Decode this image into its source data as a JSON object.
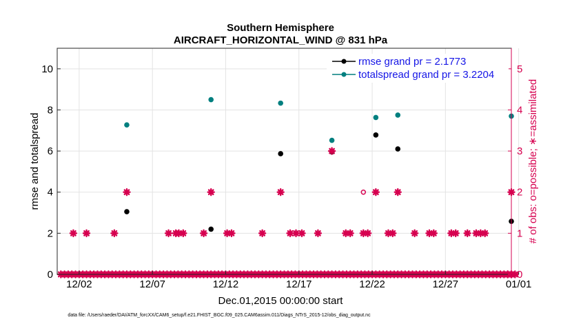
{
  "chart_data": {
    "type": "scatter",
    "title": "Southern Hemisphere",
    "subtitle": "AIRCRAFT_HORIZONTAL_WIND @ 831 hPa",
    "xlabel": "Dec.01,2015 00:00:00 start",
    "ylabel": "rmse and totalspread",
    "y2label": "# of obs: o=possible; ∗=assimilated",
    "footnote": "data file: /Users/raeder/DAI/ATM_forcXX/CAM6_setup/f.e21.FHIST_BGC.f09_025.CAM6assim.011/Diags_NTrS_2015-12/obs_diag_output.nc",
    "xlim": [
      0.5,
      31.5
    ],
    "ylim": [
      0,
      11
    ],
    "y2lim": [
      0,
      5.5
    ],
    "x_ticks": [
      {
        "x": 2,
        "label": "12/02"
      },
      {
        "x": 7,
        "label": "12/07"
      },
      {
        "x": 12,
        "label": "12/12"
      },
      {
        "x": 17,
        "label": "12/17"
      },
      {
        "x": 22,
        "label": "12/22"
      },
      {
        "x": 27,
        "label": "12/27"
      },
      {
        "x": 32,
        "label": "01/01"
      }
    ],
    "y_ticks": [
      0,
      2,
      4,
      6,
      8,
      10
    ],
    "y2_ticks": [
      0,
      1,
      2,
      3,
      4,
      5
    ],
    "grid": true,
    "legend_position": "top-right",
    "series": [
      {
        "name": "rmse grand pr = 2.1773",
        "color": "#000000",
        "axis": "left",
        "marker": "dot",
        "points": [
          [
            5.25,
            3.05
          ],
          [
            11.0,
            2.2
          ],
          [
            15.75,
            5.87
          ],
          [
            19.25,
            5.96
          ],
          [
            22.25,
            6.78
          ],
          [
            23.75,
            6.1
          ],
          [
            31.5,
            2.58
          ]
        ]
      },
      {
        "name": "totalspread grand pr = 3.2204",
        "color": "#007f7f",
        "axis": "left",
        "marker": "dot",
        "points": [
          [
            5.25,
            7.27
          ],
          [
            11.0,
            8.5
          ],
          [
            15.75,
            8.33
          ],
          [
            19.25,
            6.52
          ],
          [
            22.25,
            7.63
          ],
          [
            23.75,
            7.75
          ],
          [
            31.5,
            7.7
          ]
        ]
      },
      {
        "name": "obs assimilated",
        "color": "#d6004f",
        "axis": "right",
        "marker": "star",
        "points": [
          [
            1.6,
            1
          ],
          [
            2.5,
            1
          ],
          [
            4.4,
            1
          ],
          [
            5.25,
            2
          ],
          [
            8.1,
            1
          ],
          [
            8.6,
            1
          ],
          [
            8.8,
            1
          ],
          [
            9.1,
            1
          ],
          [
            10.5,
            1
          ],
          [
            11.0,
            2
          ],
          [
            12.1,
            1
          ],
          [
            12.4,
            1
          ],
          [
            14.5,
            1
          ],
          [
            15.75,
            2
          ],
          [
            16.4,
            1
          ],
          [
            16.8,
            1
          ],
          [
            17.2,
            1
          ],
          [
            18.3,
            1
          ],
          [
            19.25,
            3
          ],
          [
            20.2,
            1
          ],
          [
            20.5,
            1
          ],
          [
            21.4,
            1
          ],
          [
            21.7,
            1
          ],
          [
            22.25,
            2
          ],
          [
            23.1,
            1
          ],
          [
            23.4,
            1
          ],
          [
            23.75,
            2
          ],
          [
            24.9,
            1
          ],
          [
            25.9,
            1
          ],
          [
            26.2,
            1
          ],
          [
            27.4,
            1
          ],
          [
            27.7,
            1
          ],
          [
            28.5,
            1
          ],
          [
            29.1,
            1
          ],
          [
            29.4,
            1
          ],
          [
            29.7,
            1
          ],
          [
            31.5,
            2
          ],
          [
            31.25,
            0
          ],
          [
            31.5,
            0
          ],
          [
            31.75,
            0
          ]
        ]
      },
      {
        "name": "obs possible",
        "color": "#d6004f",
        "axis": "right",
        "marker": "circle",
        "points": [
          [
            21.4,
            2
          ]
        ]
      }
    ]
  }
}
